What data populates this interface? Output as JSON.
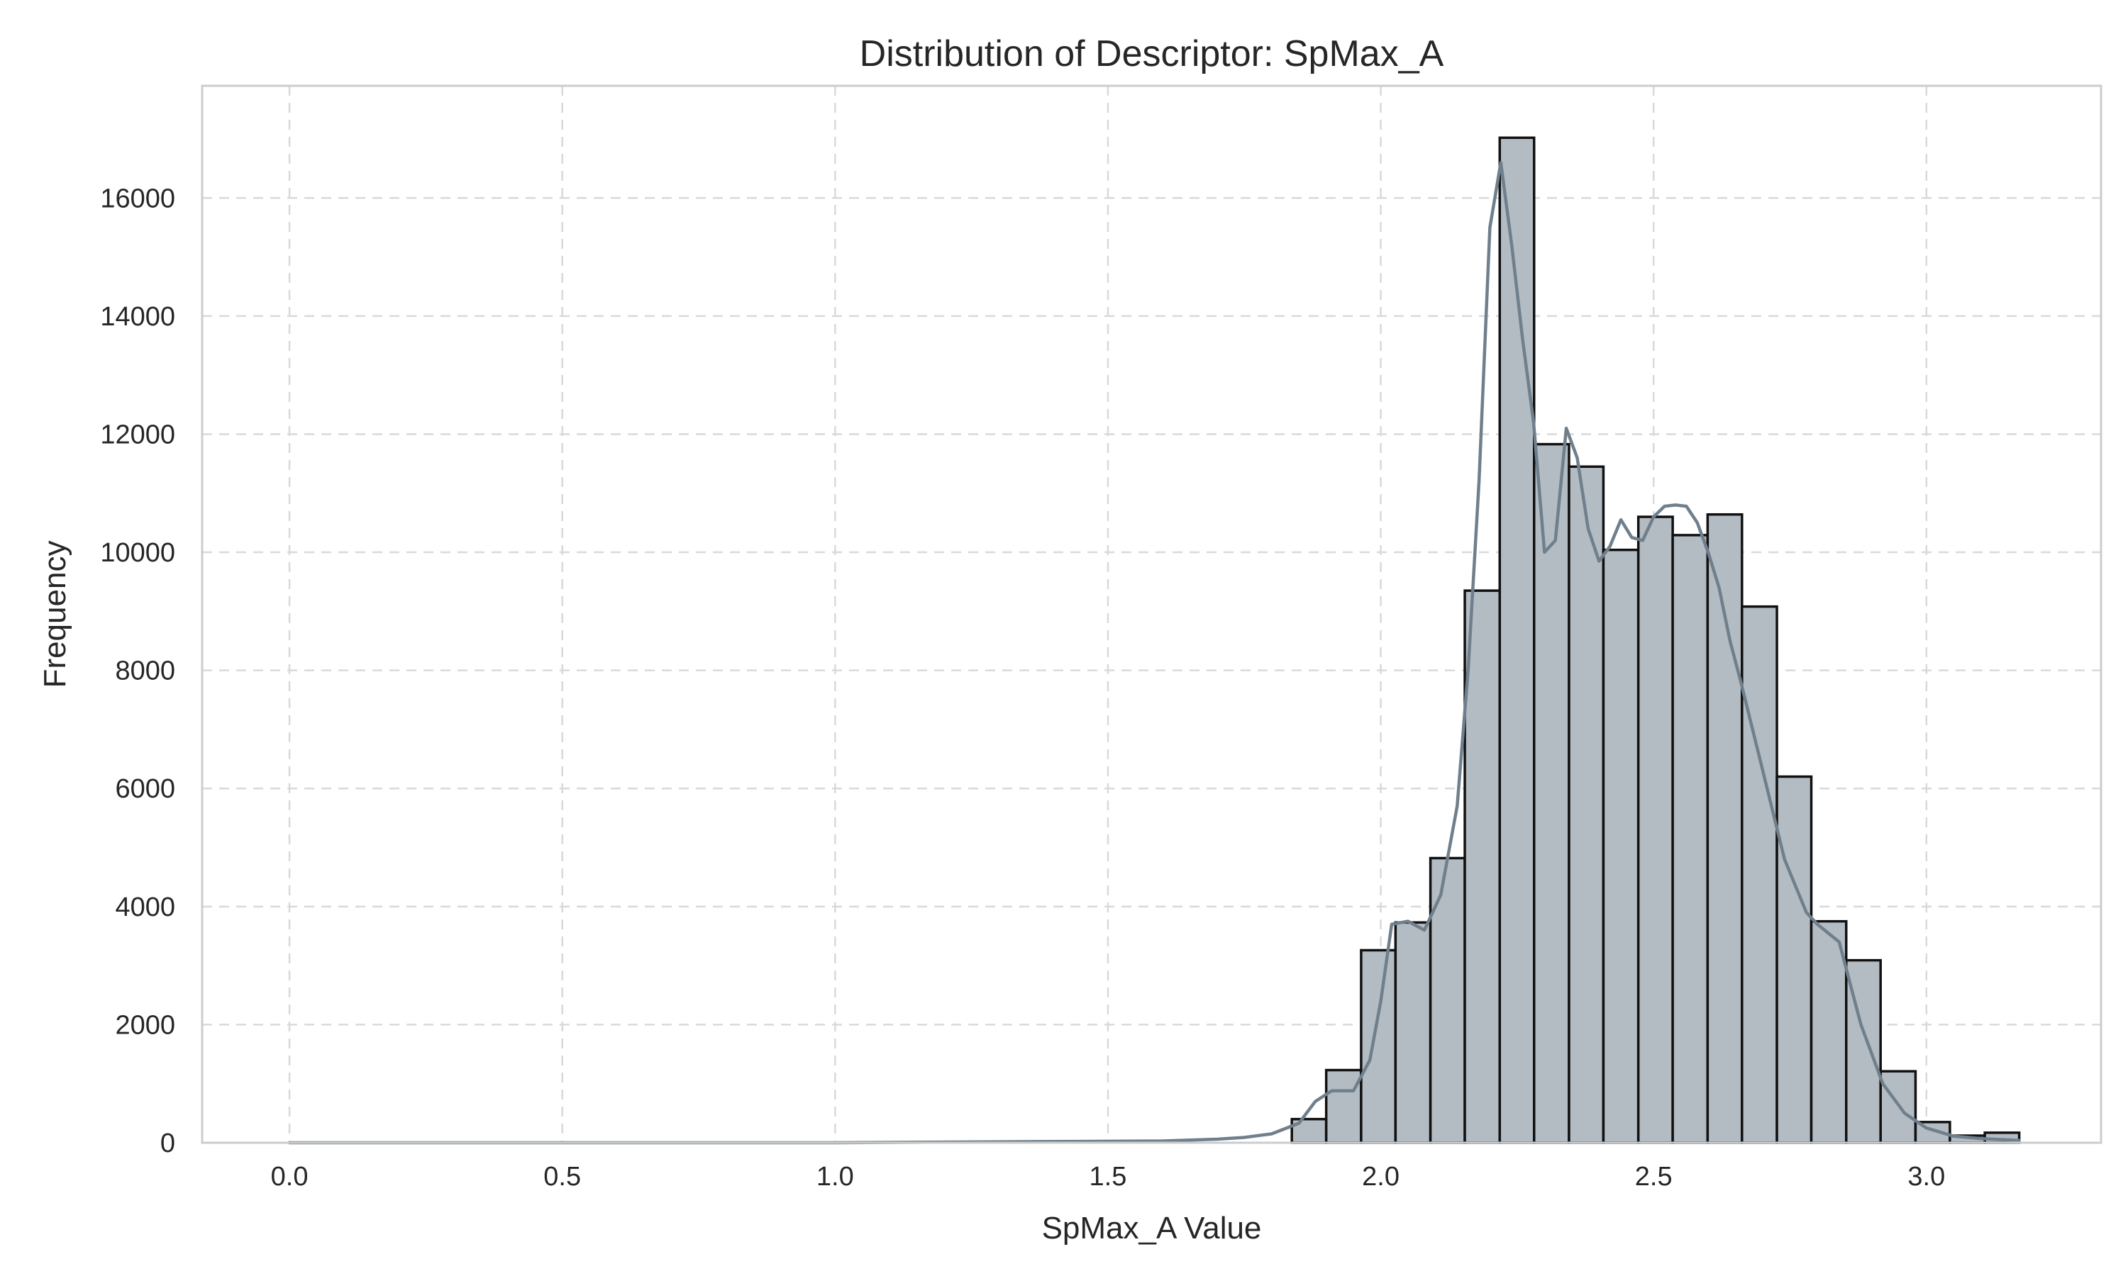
{
  "chart_data": {
    "type": "bar",
    "title": "Distribution of Descriptor: SpMax_A",
    "xlabel": "SpMax_A Value",
    "ylabel": "Frequency",
    "xlim": [
      -0.16,
      3.32
    ],
    "ylim": [
      0,
      17900
    ],
    "xticks": [
      0.0,
      0.5,
      1.0,
      1.5,
      2.0,
      2.5,
      3.0
    ],
    "xtick_labels": [
      "0.0",
      "0.5",
      "1.0",
      "1.5",
      "2.0",
      "2.5",
      "3.0"
    ],
    "yticks": [
      0,
      2000,
      4000,
      6000,
      8000,
      10000,
      12000,
      14000,
      16000
    ],
    "ytick_labels": [
      "0",
      "2000",
      "4000",
      "6000",
      "8000",
      "10000",
      "12000",
      "14000",
      "16000"
    ],
    "grid": true,
    "legend": false,
    "bar_color": "#b4bcc3",
    "bar_edge_color": "#111111",
    "kde_color": "#6f7f8c",
    "bin_width": 0.0635,
    "bins": [
      {
        "x0": 1.837,
        "x1": 1.9,
        "value": 400
      },
      {
        "x0": 1.9,
        "x1": 1.964,
        "value": 1230
      },
      {
        "x0": 1.964,
        "x1": 2.027,
        "value": 3260
      },
      {
        "x0": 2.027,
        "x1": 2.091,
        "value": 3730
      },
      {
        "x0": 2.091,
        "x1": 2.154,
        "value": 4820
      },
      {
        "x0": 2.154,
        "x1": 2.218,
        "value": 9350
      },
      {
        "x0": 2.218,
        "x1": 2.281,
        "value": 17020
      },
      {
        "x0": 2.281,
        "x1": 2.345,
        "value": 11830
      },
      {
        "x0": 2.345,
        "x1": 2.408,
        "value": 11450
      },
      {
        "x0": 2.408,
        "x1": 2.472,
        "value": 10040
      },
      {
        "x0": 2.472,
        "x1": 2.535,
        "value": 10600
      },
      {
        "x0": 2.535,
        "x1": 2.599,
        "value": 10290
      },
      {
        "x0": 2.599,
        "x1": 2.662,
        "value": 10640
      },
      {
        "x0": 2.662,
        "x1": 2.726,
        "value": 9080
      },
      {
        "x0": 2.726,
        "x1": 2.789,
        "value": 6200
      },
      {
        "x0": 2.789,
        "x1": 2.853,
        "value": 3750
      },
      {
        "x0": 2.853,
        "x1": 2.916,
        "value": 3090
      },
      {
        "x0": 2.916,
        "x1": 2.98,
        "value": 1210
      },
      {
        "x0": 2.98,
        "x1": 3.043,
        "value": 350
      },
      {
        "x0": 3.043,
        "x1": 3.107,
        "value": 120
      },
      {
        "x0": 3.107,
        "x1": 3.17,
        "value": 170
      }
    ],
    "kde": {
      "x": [
        0.0,
        0.5,
        1.0,
        1.4,
        1.6,
        1.7,
        1.75,
        1.8,
        1.85,
        1.88,
        1.91,
        1.95,
        1.98,
        2.0,
        2.02,
        2.05,
        2.08,
        2.11,
        2.14,
        2.16,
        2.18,
        2.2,
        2.22,
        2.24,
        2.26,
        2.28,
        2.3,
        2.32,
        2.34,
        2.36,
        2.38,
        2.4,
        2.42,
        2.44,
        2.46,
        2.48,
        2.5,
        2.52,
        2.54,
        2.56,
        2.58,
        2.6,
        2.62,
        2.64,
        2.66,
        2.7,
        2.74,
        2.78,
        2.8,
        2.84,
        2.88,
        2.92,
        2.96,
        3.0,
        3.05,
        3.1,
        3.17
      ],
      "y": [
        0,
        0,
        0,
        20,
        30,
        60,
        90,
        150,
        330,
        700,
        880,
        880,
        1400,
        2400,
        3700,
        3750,
        3600,
        4200,
        5700,
        8000,
        11200,
        15500,
        16600,
        15200,
        13600,
        12200,
        10000,
        10200,
        12100,
        11600,
        10400,
        9850,
        10100,
        10550,
        10250,
        10200,
        10600,
        10780,
        10800,
        10780,
        10500,
        10000,
        9400,
        8500,
        7800,
        6300,
        4800,
        3900,
        3700,
        3400,
        2000,
        1000,
        500,
        250,
        110,
        70,
        40
      ]
    }
  }
}
